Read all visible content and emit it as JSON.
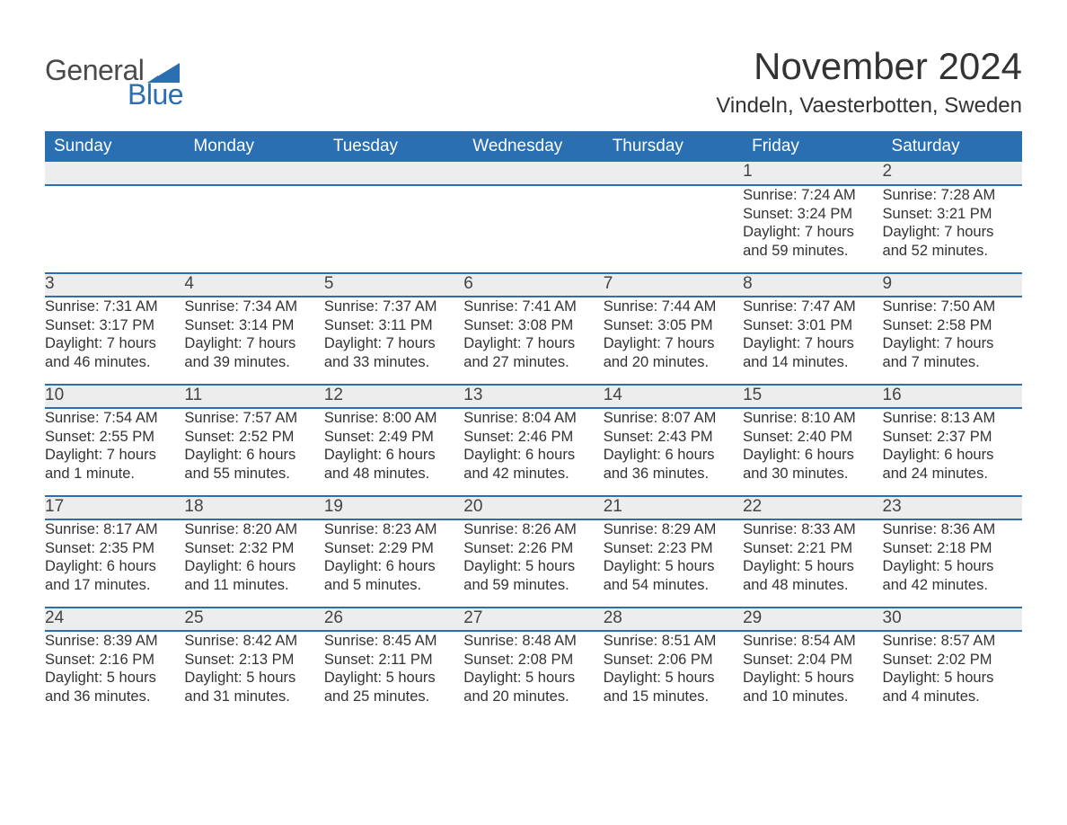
{
  "brand": {
    "general": "General",
    "blue": "Blue",
    "accent_color": "#2a6fb2",
    "text_color": "#4a4a4a"
  },
  "title": {
    "month_year": "November 2024",
    "location": "Vindeln, Vaesterbotten, Sweden"
  },
  "colors": {
    "header_bg": "#2a6fb2",
    "header_text": "#ffffff",
    "daynum_bg": "#ededed",
    "row_divider": "#2a6fb2",
    "body_text": "#333333",
    "page_bg": "#ffffff"
  },
  "weekdays": [
    "Sunday",
    "Monday",
    "Tuesday",
    "Wednesday",
    "Thursday",
    "Friday",
    "Saturday"
  ],
  "weeks": [
    [
      null,
      null,
      null,
      null,
      null,
      {
        "day": "1",
        "sunrise": "Sunrise: 7:24 AM",
        "sunset": "Sunset: 3:24 PM",
        "daylight": "Daylight: 7 hours and 59 minutes."
      },
      {
        "day": "2",
        "sunrise": "Sunrise: 7:28 AM",
        "sunset": "Sunset: 3:21 PM",
        "daylight": "Daylight: 7 hours and 52 minutes."
      }
    ],
    [
      {
        "day": "3",
        "sunrise": "Sunrise: 7:31 AM",
        "sunset": "Sunset: 3:17 PM",
        "daylight": "Daylight: 7 hours and 46 minutes."
      },
      {
        "day": "4",
        "sunrise": "Sunrise: 7:34 AM",
        "sunset": "Sunset: 3:14 PM",
        "daylight": "Daylight: 7 hours and 39 minutes."
      },
      {
        "day": "5",
        "sunrise": "Sunrise: 7:37 AM",
        "sunset": "Sunset: 3:11 PM",
        "daylight": "Daylight: 7 hours and 33 minutes."
      },
      {
        "day": "6",
        "sunrise": "Sunrise: 7:41 AM",
        "sunset": "Sunset: 3:08 PM",
        "daylight": "Daylight: 7 hours and 27 minutes."
      },
      {
        "day": "7",
        "sunrise": "Sunrise: 7:44 AM",
        "sunset": "Sunset: 3:05 PM",
        "daylight": "Daylight: 7 hours and 20 minutes."
      },
      {
        "day": "8",
        "sunrise": "Sunrise: 7:47 AM",
        "sunset": "Sunset: 3:01 PM",
        "daylight": "Daylight: 7 hours and 14 minutes."
      },
      {
        "day": "9",
        "sunrise": "Sunrise: 7:50 AM",
        "sunset": "Sunset: 2:58 PM",
        "daylight": "Daylight: 7 hours and 7 minutes."
      }
    ],
    [
      {
        "day": "10",
        "sunrise": "Sunrise: 7:54 AM",
        "sunset": "Sunset: 2:55 PM",
        "daylight": "Daylight: 7 hours and 1 minute."
      },
      {
        "day": "11",
        "sunrise": "Sunrise: 7:57 AM",
        "sunset": "Sunset: 2:52 PM",
        "daylight": "Daylight: 6 hours and 55 minutes."
      },
      {
        "day": "12",
        "sunrise": "Sunrise: 8:00 AM",
        "sunset": "Sunset: 2:49 PM",
        "daylight": "Daylight: 6 hours and 48 minutes."
      },
      {
        "day": "13",
        "sunrise": "Sunrise: 8:04 AM",
        "sunset": "Sunset: 2:46 PM",
        "daylight": "Daylight: 6 hours and 42 minutes."
      },
      {
        "day": "14",
        "sunrise": "Sunrise: 8:07 AM",
        "sunset": "Sunset: 2:43 PM",
        "daylight": "Daylight: 6 hours and 36 minutes."
      },
      {
        "day": "15",
        "sunrise": "Sunrise: 8:10 AM",
        "sunset": "Sunset: 2:40 PM",
        "daylight": "Daylight: 6 hours and 30 minutes."
      },
      {
        "day": "16",
        "sunrise": "Sunrise: 8:13 AM",
        "sunset": "Sunset: 2:37 PM",
        "daylight": "Daylight: 6 hours and 24 minutes."
      }
    ],
    [
      {
        "day": "17",
        "sunrise": "Sunrise: 8:17 AM",
        "sunset": "Sunset: 2:35 PM",
        "daylight": "Daylight: 6 hours and 17 minutes."
      },
      {
        "day": "18",
        "sunrise": "Sunrise: 8:20 AM",
        "sunset": "Sunset: 2:32 PM",
        "daylight": "Daylight: 6 hours and 11 minutes."
      },
      {
        "day": "19",
        "sunrise": "Sunrise: 8:23 AM",
        "sunset": "Sunset: 2:29 PM",
        "daylight": "Daylight: 6 hours and 5 minutes."
      },
      {
        "day": "20",
        "sunrise": "Sunrise: 8:26 AM",
        "sunset": "Sunset: 2:26 PM",
        "daylight": "Daylight: 5 hours and 59 minutes."
      },
      {
        "day": "21",
        "sunrise": "Sunrise: 8:29 AM",
        "sunset": "Sunset: 2:23 PM",
        "daylight": "Daylight: 5 hours and 54 minutes."
      },
      {
        "day": "22",
        "sunrise": "Sunrise: 8:33 AM",
        "sunset": "Sunset: 2:21 PM",
        "daylight": "Daylight: 5 hours and 48 minutes."
      },
      {
        "day": "23",
        "sunrise": "Sunrise: 8:36 AM",
        "sunset": "Sunset: 2:18 PM",
        "daylight": "Daylight: 5 hours and 42 minutes."
      }
    ],
    [
      {
        "day": "24",
        "sunrise": "Sunrise: 8:39 AM",
        "sunset": "Sunset: 2:16 PM",
        "daylight": "Daylight: 5 hours and 36 minutes."
      },
      {
        "day": "25",
        "sunrise": "Sunrise: 8:42 AM",
        "sunset": "Sunset: 2:13 PM",
        "daylight": "Daylight: 5 hours and 31 minutes."
      },
      {
        "day": "26",
        "sunrise": "Sunrise: 8:45 AM",
        "sunset": "Sunset: 2:11 PM",
        "daylight": "Daylight: 5 hours and 25 minutes."
      },
      {
        "day": "27",
        "sunrise": "Sunrise: 8:48 AM",
        "sunset": "Sunset: 2:08 PM",
        "daylight": "Daylight: 5 hours and 20 minutes."
      },
      {
        "day": "28",
        "sunrise": "Sunrise: 8:51 AM",
        "sunset": "Sunset: 2:06 PM",
        "daylight": "Daylight: 5 hours and 15 minutes."
      },
      {
        "day": "29",
        "sunrise": "Sunrise: 8:54 AM",
        "sunset": "Sunset: 2:04 PM",
        "daylight": "Daylight: 5 hours and 10 minutes."
      },
      {
        "day": "30",
        "sunrise": "Sunrise: 8:57 AM",
        "sunset": "Sunset: 2:02 PM",
        "daylight": "Daylight: 5 hours and 4 minutes."
      }
    ]
  ]
}
